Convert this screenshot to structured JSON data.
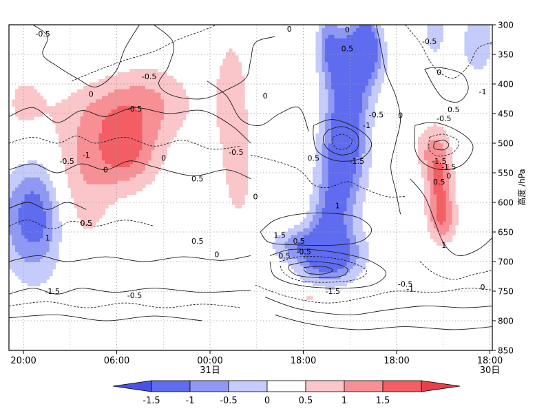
{
  "chart_data": {
    "type": "heatmap",
    "title": "",
    "ylabel": "高度 /hPa",
    "y_axis": {
      "min": 300,
      "max": 850,
      "inverted": true,
      "ticks": [
        300,
        350,
        400,
        450,
        500,
        550,
        600,
        650,
        700,
        750,
        800,
        850
      ]
    },
    "x_axis": {
      "ticks": [
        {
          "label": "20:00",
          "date": ""
        },
        {
          "label": "06:00",
          "date": ""
        },
        {
          "label": "00:00",
          "date": "31日"
        },
        {
          "label": "18:00",
          "date": ""
        },
        {
          "label": "18:00",
          "date": ""
        },
        {
          "label": "18:00",
          "date": "30日"
        }
      ]
    },
    "grid": true,
    "colorbar": {
      "boundaries": [
        -1.5,
        -1,
        -0.5,
        0,
        0.5,
        1,
        1.5
      ],
      "tick_labels": [
        "-1.5",
        "-1",
        "-0.5",
        "0",
        "0.5",
        "1",
        "1.5"
      ],
      "colors": [
        "#5f6cf0",
        "#8f99f3",
        "#c5cbfa",
        "#ffffff",
        "#fbc6c9",
        "#f79095",
        "#f25e64"
      ],
      "extend": "both",
      "under_color": "#4a52e6",
      "over_color": "#e8404a"
    },
    "contour_labels": [
      {
        "text": "-0.5",
        "t": 0.07,
        "p": 315
      },
      {
        "text": "-0.5",
        "t": 0.29,
        "p": 387
      },
      {
        "text": "0",
        "t": 0.17,
        "p": 417
      },
      {
        "text": "-0.5",
        "t": 0.26,
        "p": 442
      },
      {
        "text": "-0.5",
        "t": 0.12,
        "p": 530
      },
      {
        "text": "-1",
        "t": 0.16,
        "p": 520
      },
      {
        "text": "0",
        "t": 0.2,
        "p": 545
      },
      {
        "text": "0",
        "t": 0.32,
        "p": 525
      },
      {
        "text": "0.5",
        "t": 0.39,
        "p": 560
      },
      {
        "text": "-0.5",
        "t": 0.47,
        "p": 515
      },
      {
        "text": "0.5",
        "t": 0.16,
        "p": 635
      },
      {
        "text": "1",
        "t": 0.08,
        "p": 660
      },
      {
        "text": "0.5",
        "t": 0.39,
        "p": 665
      },
      {
        "text": "0",
        "t": 0.43,
        "p": 688
      },
      {
        "text": "-1.5",
        "t": 0.09,
        "p": 750
      },
      {
        "text": "-0.5",
        "t": 0.26,
        "p": 757
      },
      {
        "text": "0",
        "t": 0.53,
        "p": 420
      },
      {
        "text": "0",
        "t": 0.51,
        "p": 590
      },
      {
        "text": "0.5",
        "t": 0.7,
        "p": 340
      },
      {
        "text": "0",
        "t": 0.7,
        "p": 308
      },
      {
        "text": "0.5",
        "t": 0.63,
        "p": 525
      },
      {
        "text": "1",
        "t": 0.68,
        "p": 605
      },
      {
        "text": "1.5",
        "t": 0.56,
        "p": 655
      },
      {
        "text": "0.5",
        "t": 0.6,
        "p": 665
      },
      {
        "text": "0.5",
        "t": 0.57,
        "p": 690
      },
      {
        "text": "-0.5",
        "t": 0.61,
        "p": 683
      },
      {
        "text": "-1.5",
        "t": 0.67,
        "p": 750
      },
      {
        "text": "-0.5",
        "t": 0.76,
        "p": 452
      },
      {
        "text": "-1",
        "t": 0.74,
        "p": 470
      },
      {
        "text": "-1.5",
        "t": 0.72,
        "p": 530
      },
      {
        "text": "0",
        "t": 0.81,
        "p": 453
      },
      {
        "text": "-0.5",
        "t": 0.87,
        "p": 328
      },
      {
        "text": "0",
        "t": 0.89,
        "p": 380
      },
      {
        "text": "-1",
        "t": 0.98,
        "p": 413
      },
      {
        "text": "0.5",
        "t": 0.92,
        "p": 443
      },
      {
        "text": "-0.5",
        "t": 0.9,
        "p": 458
      },
      {
        "text": "-1.5",
        "t": 0.89,
        "p": 530
      },
      {
        "text": "-1.5",
        "t": 0.91,
        "p": 540
      },
      {
        "text": "0",
        "t": 0.91,
        "p": 555
      },
      {
        "text": "0.5",
        "t": 0.89,
        "p": 565
      },
      {
        "text": "1",
        "t": 0.9,
        "p": 672
      },
      {
        "text": "-0.5",
        "t": 0.82,
        "p": 738
      },
      {
        "text": "-1",
        "t": 0.83,
        "p": 746
      },
      {
        "text": "0",
        "t": 0.98,
        "p": 743
      },
      {
        "text": "0",
        "t": 0.58,
        "p": 307
      }
    ]
  }
}
